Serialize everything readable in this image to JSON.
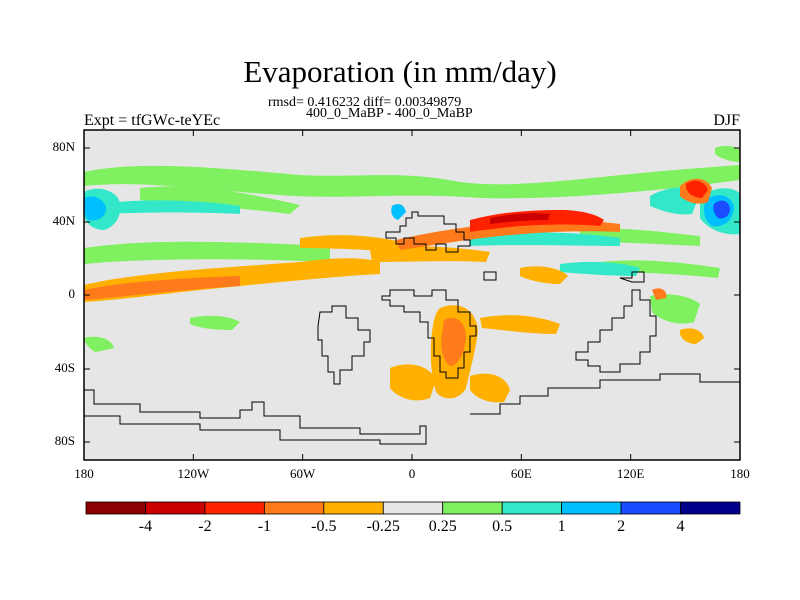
{
  "title": "Evaporation (in mm/day)",
  "stats": "rmsd= 0.416232 diff= 0.00349879",
  "subtitle": "400_0_MaBP - 400_0_MaBP",
  "left_label": "Expt = tfGWc-teYEc",
  "right_label": "DJF",
  "lat_ticks": [
    "80N",
    "40N",
    "0",
    "40S",
    "80S"
  ],
  "lon_ticks": [
    "180",
    "120W",
    "60W",
    "0",
    "60E",
    "120E",
    "180"
  ],
  "colorbar": {
    "labels": [
      "-4",
      "-2",
      "-1",
      "-0.5",
      "-0.25",
      "0.25",
      "0.5",
      "1",
      "2",
      "4"
    ],
    "colors": [
      "#8b0000",
      "#cc0000",
      "#ff2200",
      "#ff7a1a",
      "#ffb000",
      "#e6e6e6",
      "#7ff060",
      "#33e8c8",
      "#00bfff",
      "#1a4dff",
      "#00008b"
    ]
  },
  "chart_data": {
    "type": "heatmap",
    "title": "Evaporation (in mm/day)",
    "xlim": [
      -180,
      180
    ],
    "ylim": [
      -90,
      90
    ],
    "contour_levels": [
      -4,
      -2,
      -1,
      -0.5,
      -0.25,
      0.25,
      0.5,
      1,
      2,
      4
    ],
    "background_level": "-0.25 to 0.25",
    "features": [
      {
        "region": "North Pacific near dateline (~40N, 170E-180)",
        "value_range": "1 to 4"
      },
      {
        "region": "Northwest Pacific (~40N, 150E-160E)",
        "value_range": "-4 to -1"
      },
      {
        "region": "Mediterranean to Central Asia (~35N, 30E-80E)",
        "value_range": "-4 to -0.5"
      },
      {
        "region": "Equatorial Pacific (~0-10N, 180-120W)",
        "value_range": "-1 to -0.25"
      },
      {
        "region": "North Atlantic (~40N, 60W-0)",
        "value_range": "0.25 to 0.5"
      },
      {
        "region": "Southern Hemisphere midlatitudes (~40S, 20E-40E)",
        "value_range": "-1 to -0.25"
      }
    ]
  }
}
